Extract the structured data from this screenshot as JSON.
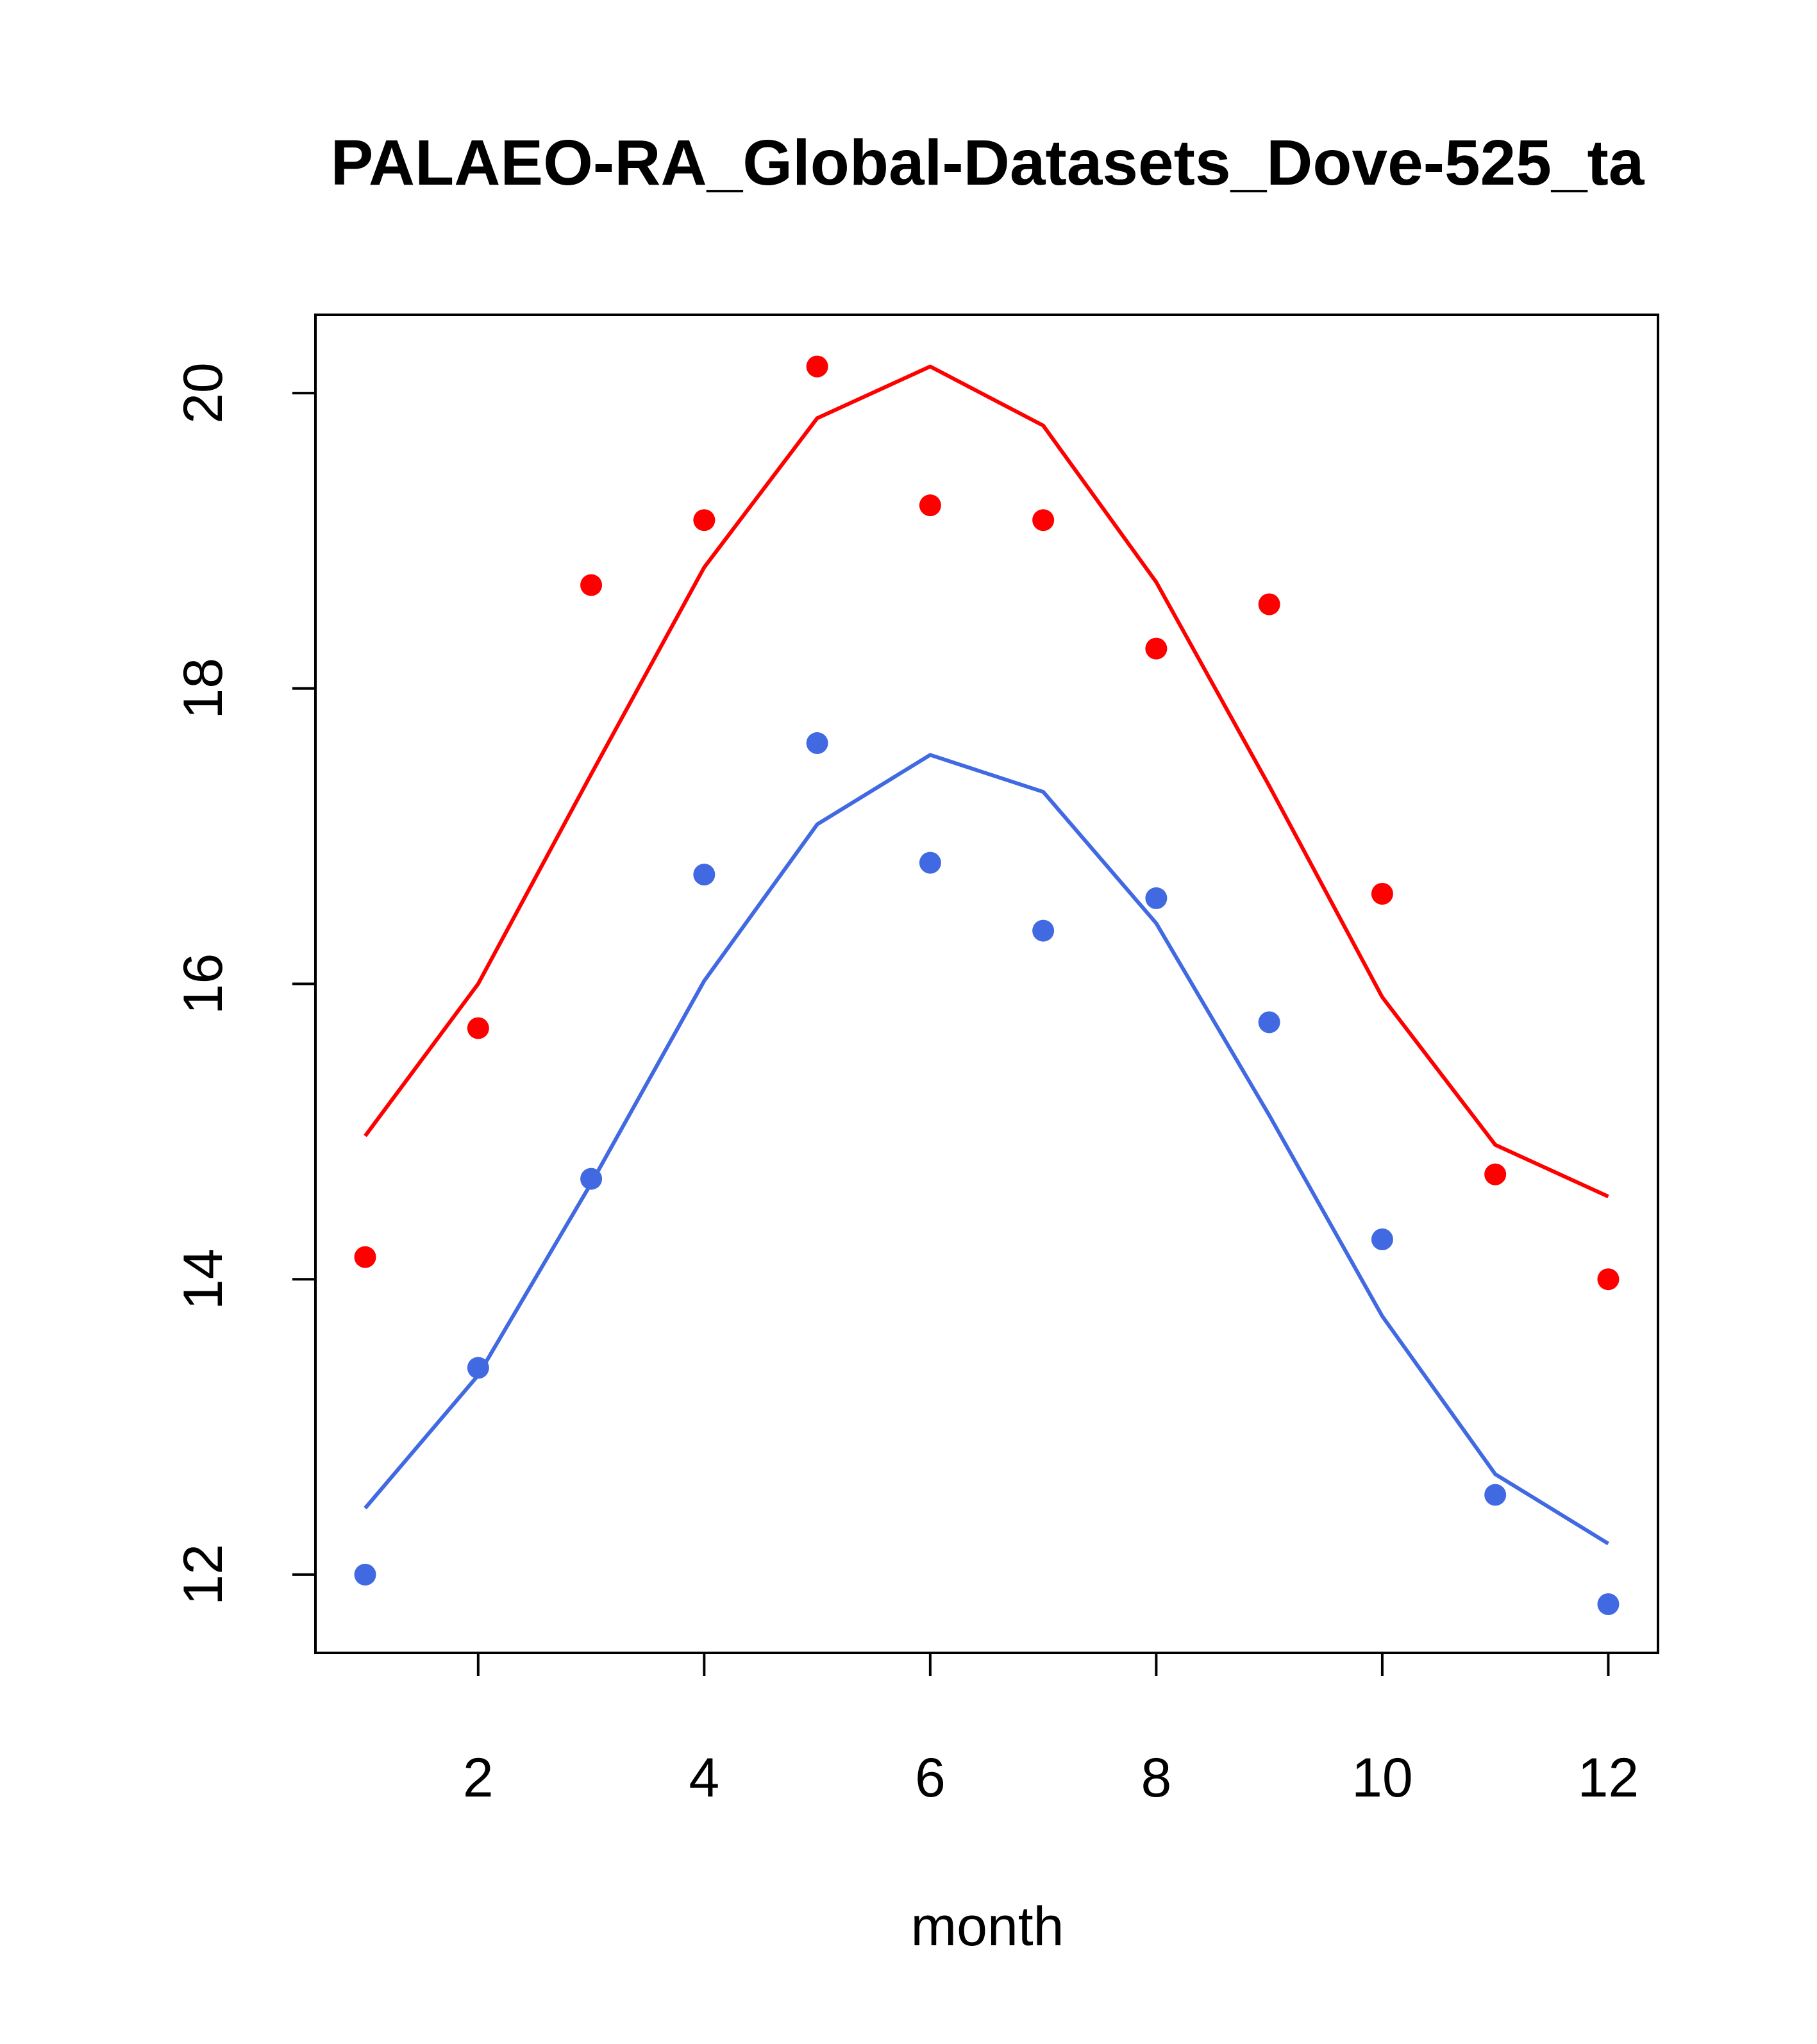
{
  "chart_data": {
    "type": "line",
    "title": "PALAEO-RA_Global-Datasets_Dove-525_ta",
    "xlabel": "month",
    "ylabel": "",
    "xlim": [
      0.56,
      12.44
    ],
    "ylim": [
      11.47,
      20.53
    ],
    "xticks": [
      2,
      4,
      6,
      8,
      10,
      12
    ],
    "yticks": [
      12,
      14,
      16,
      18,
      20
    ],
    "x": [
      1,
      2,
      3,
      4,
      5,
      6,
      7,
      8,
      9,
      10,
      11,
      12
    ],
    "series": [
      {
        "name": "red line",
        "kind": "line",
        "color": "#ff0000",
        "values": [
          14.97,
          16.0,
          17.42,
          18.82,
          19.83,
          20.18,
          19.78,
          18.72,
          17.34,
          15.91,
          14.91,
          14.56
        ]
      },
      {
        "name": "red points",
        "kind": "points",
        "color": "#ff0000",
        "values": [
          14.15,
          15.7,
          18.7,
          19.14,
          20.18,
          19.24,
          19.14,
          18.27,
          18.57,
          16.61,
          14.71,
          14.0
        ]
      },
      {
        "name": "blue line",
        "kind": "line",
        "color": "#4169e1",
        "values": [
          12.45,
          13.35,
          14.65,
          16.02,
          17.08,
          17.55,
          17.3,
          16.41,
          15.11,
          13.75,
          12.68,
          12.21
        ]
      },
      {
        "name": "blue points",
        "kind": "points",
        "color": "#4169e1",
        "values": [
          12.0,
          13.4,
          14.68,
          16.74,
          17.63,
          16.82,
          16.36,
          16.58,
          15.74,
          14.27,
          12.54,
          11.8
        ]
      }
    ]
  }
}
